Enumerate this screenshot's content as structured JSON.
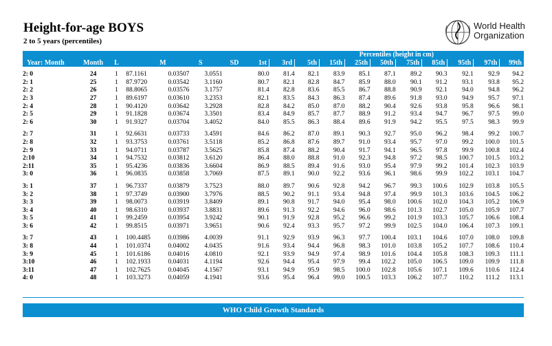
{
  "title": "Height-for-age BOYS",
  "subtitle": "2 to 5 years (percentiles)",
  "logo": {
    "line1": "World Health",
    "line2": "Organization",
    "icon": "who-emblem-icon"
  },
  "table": {
    "percentiles_header": "Percentiles (height in cm)",
    "columns": [
      "Year: Month",
      "Month",
      "L",
      "M",
      "S",
      "SD",
      "1st",
      "3rd",
      "5th",
      "15th",
      "25th",
      "50th",
      "75th",
      "85th",
      "95th",
      "97th",
      "99th"
    ],
    "groups": [
      [
        [
          "2: 0",
          "24",
          "1",
          "87.1161",
          "0.03507",
          "3.0551",
          "80.0",
          "81.4",
          "82.1",
          "83.9",
          "85.1",
          "87.1",
          "89.2",
          "90.3",
          "92.1",
          "92.9",
          "94.2"
        ],
        [
          "2: 1",
          "25",
          "1",
          "87.9720",
          "0.03542",
          "3.1160",
          "80.7",
          "82.1",
          "82.8",
          "84.7",
          "85.9",
          "88.0",
          "90.1",
          "91.2",
          "93.1",
          "93.8",
          "95.2"
        ],
        [
          "2: 2",
          "26",
          "1",
          "88.8065",
          "0.03576",
          "3.1757",
          "81.4",
          "82.8",
          "83.6",
          "85.5",
          "86.7",
          "88.8",
          "90.9",
          "92.1",
          "94.0",
          "94.8",
          "96.2"
        ],
        [
          "2: 3",
          "27",
          "1",
          "89.6197",
          "0.03610",
          "3.2353",
          "82.1",
          "83.5",
          "84.3",
          "86.3",
          "87.4",
          "89.6",
          "91.8",
          "93.0",
          "94.9",
          "95.7",
          "97.1"
        ],
        [
          "2: 4",
          "28",
          "1",
          "90.4120",
          "0.03642",
          "3.2928",
          "82.8",
          "84.2",
          "85.0",
          "87.0",
          "88.2",
          "90.4",
          "92.6",
          "93.8",
          "95.8",
          "96.6",
          "98.1"
        ],
        [
          "2: 5",
          "29",
          "1",
          "91.1828",
          "0.03674",
          "3.3501",
          "83.4",
          "84.9",
          "85.7",
          "87.7",
          "88.9",
          "91.2",
          "93.4",
          "94.7",
          "96.7",
          "97.5",
          "99.0"
        ],
        [
          "2: 6",
          "30",
          "1",
          "91.9327",
          "0.03704",
          "3.4052",
          "84.0",
          "85.5",
          "86.3",
          "88.4",
          "89.6",
          "91.9",
          "94.2",
          "95.5",
          "97.5",
          "98.3",
          "99.9"
        ]
      ],
      [
        [
          "2: 7",
          "31",
          "1",
          "92.6631",
          "0.03733",
          "3.4591",
          "84.6",
          "86.2",
          "87.0",
          "89.1",
          "90.3",
          "92.7",
          "95.0",
          "96.2",
          "98.4",
          "99.2",
          "100.7"
        ],
        [
          "2: 8",
          "32",
          "1",
          "93.3753",
          "0.03761",
          "3.5118",
          "85.2",
          "86.8",
          "87.6",
          "89.7",
          "91.0",
          "93.4",
          "95.7",
          "97.0",
          "99.2",
          "100.0",
          "101.5"
        ],
        [
          "2: 9",
          "33",
          "1",
          "94.0711",
          "0.03787",
          "3.5625",
          "85.8",
          "87.4",
          "88.2",
          "90.4",
          "91.7",
          "94.1",
          "96.5",
          "97.8",
          "99.9",
          "100.8",
          "102.4"
        ],
        [
          "2:10",
          "34",
          "1",
          "94.7532",
          "0.03812",
          "3.6120",
          "86.4",
          "88.0",
          "88.8",
          "91.0",
          "92.3",
          "94.8",
          "97.2",
          "98.5",
          "100.7",
          "101.5",
          "103.2"
        ],
        [
          "2:11",
          "35",
          "1",
          "95.4236",
          "0.03836",
          "3.6604",
          "86.9",
          "88.5",
          "89.4",
          "91.6",
          "93.0",
          "95.4",
          "97.9",
          "99.2",
          "101.4",
          "102.3",
          "103.9"
        ],
        [
          "3: 0",
          "36",
          "1",
          "96.0835",
          "0.03858",
          "3.7069",
          "87.5",
          "89.1",
          "90.0",
          "92.2",
          "93.6",
          "96.1",
          "98.6",
          "99.9",
          "102.2",
          "103.1",
          "104.7"
        ]
      ],
      [
        [
          "3: 1",
          "37",
          "1",
          "96.7337",
          "0.03879",
          "3.7523",
          "88.0",
          "89.7",
          "90.6",
          "92.8",
          "94.2",
          "96.7",
          "99.3",
          "100.6",
          "102.9",
          "103.8",
          "105.5"
        ],
        [
          "3: 2",
          "38",
          "1",
          "97.3749",
          "0.03900",
          "3.7976",
          "88.5",
          "90.2",
          "91.1",
          "93.4",
          "94.8",
          "97.4",
          "99.9",
          "101.3",
          "103.6",
          "104.5",
          "106.2"
        ],
        [
          "3: 3",
          "39",
          "1",
          "98.0073",
          "0.03919",
          "3.8409",
          "89.1",
          "90.8",
          "91.7",
          "94.0",
          "95.4",
          "98.0",
          "100.6",
          "102.0",
          "104.3",
          "105.2",
          "106.9"
        ],
        [
          "3: 4",
          "40",
          "1",
          "98.6310",
          "0.03937",
          "3.8831",
          "89.6",
          "91.3",
          "92.2",
          "94.6",
          "96.0",
          "98.6",
          "101.3",
          "102.7",
          "105.0",
          "105.9",
          "107.7"
        ],
        [
          "3: 5",
          "41",
          "1",
          "99.2459",
          "0.03954",
          "3.9242",
          "90.1",
          "91.9",
          "92.8",
          "95.2",
          "96.6",
          "99.2",
          "101.9",
          "103.3",
          "105.7",
          "106.6",
          "108.4"
        ],
        [
          "3: 6",
          "42",
          "1",
          "99.8515",
          "0.03971",
          "3.9651",
          "90.6",
          "92.4",
          "93.3",
          "95.7",
          "97.2",
          "99.9",
          "102.5",
          "104.0",
          "106.4",
          "107.3",
          "109.1"
        ]
      ],
      [
        [
          "3: 7",
          "43",
          "1",
          "100.4485",
          "0.03986",
          "4.0039",
          "91.1",
          "92.9",
          "93.9",
          "96.3",
          "97.7",
          "100.4",
          "103.1",
          "104.6",
          "107.0",
          "108.0",
          "109.8"
        ],
        [
          "3: 8",
          "44",
          "1",
          "101.0374",
          "0.04002",
          "4.0435",
          "91.6",
          "93.4",
          "94.4",
          "96.8",
          "98.3",
          "101.0",
          "103.8",
          "105.2",
          "107.7",
          "108.6",
          "110.4"
        ],
        [
          "3: 9",
          "45",
          "1",
          "101.6186",
          "0.04016",
          "4.0810",
          "92.1",
          "93.9",
          "94.9",
          "97.4",
          "98.9",
          "101.6",
          "104.4",
          "105.8",
          "108.3",
          "109.3",
          "111.1"
        ],
        [
          "3:10",
          "46",
          "1",
          "102.1933",
          "0.04031",
          "4.1194",
          "92.6",
          "94.4",
          "95.4",
          "97.9",
          "99.4",
          "102.2",
          "105.0",
          "106.5",
          "109.0",
          "109.9",
          "111.8"
        ],
        [
          "3:11",
          "47",
          "1",
          "102.7625",
          "0.04045",
          "4.1567",
          "93.1",
          "94.9",
          "95.9",
          "98.5",
          "100.0",
          "102.8",
          "105.6",
          "107.1",
          "109.6",
          "110.6",
          "112.4"
        ],
        [
          "4: 0",
          "48",
          "1",
          "103.3273",
          "0.04059",
          "4.1941",
          "93.6",
          "95.4",
          "96.4",
          "99.0",
          "100.5",
          "103.3",
          "106.2",
          "107.7",
          "110.2",
          "111.2",
          "113.1"
        ]
      ]
    ]
  },
  "footer": "WHO Child Growth Standards",
  "colors": {
    "header_bg": "#0b8fd1",
    "header_text": "#ffffff"
  }
}
